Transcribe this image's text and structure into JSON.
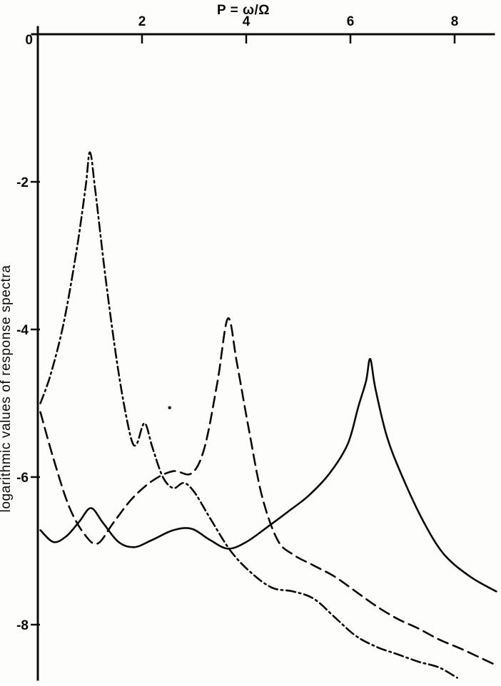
{
  "figure": {
    "title": "P = ω/Ω",
    "ylabel": "logarithmic values of response spectra"
  },
  "chart_data": {
    "type": "line",
    "title": "P = ω/Ω",
    "xlabel": "P = ω/Ω",
    "ylabel": "logarithmic values of response spectra",
    "x_axis": {
      "position": "top",
      "range": [
        0,
        8.8
      ],
      "ticks": [
        {
          "value": 2,
          "label": "2"
        },
        {
          "value": 4,
          "label": "4"
        },
        {
          "value": 6,
          "label": "6"
        },
        {
          "value": 8,
          "label": "8"
        }
      ]
    },
    "y_axis": {
      "position": "left",
      "range": [
        -8.8,
        0.1
      ],
      "ticks": [
        {
          "value": 0,
          "label": "0"
        },
        {
          "value": -2,
          "label": "-2"
        },
        {
          "value": -4,
          "label": "-4"
        },
        {
          "value": -6,
          "label": "-6"
        },
        {
          "value": -8,
          "label": "-8"
        }
      ]
    },
    "grid": false,
    "legend": "none",
    "series": [
      {
        "name": "dash-dot-curve",
        "style": "dash-dot",
        "peak": {
          "p": 1.0,
          "value": -1.6
        },
        "points": [
          [
            0.05,
            -5.0
          ],
          [
            0.25,
            -4.6
          ],
          [
            0.5,
            -3.9
          ],
          [
            0.75,
            -2.9
          ],
          [
            0.92,
            -2.05
          ],
          [
            1.0,
            -1.6
          ],
          [
            1.1,
            -2.1
          ],
          [
            1.3,
            -3.3
          ],
          [
            1.5,
            -4.35
          ],
          [
            1.65,
            -5.0
          ],
          [
            1.8,
            -5.5
          ],
          [
            1.9,
            -5.55
          ],
          [
            2.05,
            -5.27
          ],
          [
            2.2,
            -5.6
          ],
          [
            2.4,
            -6.0
          ],
          [
            2.6,
            -6.15
          ],
          [
            2.8,
            -6.08
          ],
          [
            3.0,
            -6.2
          ],
          [
            3.3,
            -6.55
          ],
          [
            3.7,
            -7.0
          ],
          [
            4.1,
            -7.3
          ],
          [
            4.5,
            -7.5
          ],
          [
            4.9,
            -7.55
          ],
          [
            5.3,
            -7.65
          ],
          [
            5.7,
            -7.9
          ],
          [
            6.1,
            -8.15
          ],
          [
            6.5,
            -8.3
          ],
          [
            6.9,
            -8.4
          ],
          [
            7.3,
            -8.5
          ],
          [
            7.7,
            -8.58
          ],
          [
            8.05,
            -8.72
          ]
        ]
      },
      {
        "name": "dashed-curve",
        "style": "dashed",
        "peak": {
          "p": 3.65,
          "value": -3.85
        },
        "points": [
          [
            0.05,
            -5.12
          ],
          [
            0.3,
            -5.75
          ],
          [
            0.6,
            -6.4
          ],
          [
            0.9,
            -6.78
          ],
          [
            1.15,
            -6.9
          ],
          [
            1.45,
            -6.62
          ],
          [
            1.8,
            -6.3
          ],
          [
            2.2,
            -6.05
          ],
          [
            2.6,
            -5.92
          ],
          [
            2.95,
            -5.95
          ],
          [
            3.2,
            -5.6
          ],
          [
            3.45,
            -4.7
          ],
          [
            3.65,
            -3.85
          ],
          [
            3.82,
            -4.45
          ],
          [
            4.05,
            -5.35
          ],
          [
            4.3,
            -6.25
          ],
          [
            4.6,
            -6.85
          ],
          [
            4.9,
            -7.05
          ],
          [
            5.3,
            -7.2
          ],
          [
            5.7,
            -7.35
          ],
          [
            6.1,
            -7.55
          ],
          [
            6.5,
            -7.75
          ],
          [
            6.9,
            -7.92
          ],
          [
            7.3,
            -8.05
          ],
          [
            7.7,
            -8.2
          ],
          [
            8.1,
            -8.32
          ],
          [
            8.5,
            -8.45
          ],
          [
            8.8,
            -8.55
          ]
        ]
      },
      {
        "name": "solid-curve",
        "style": "solid",
        "peak": {
          "p": 6.38,
          "value": -4.4
        },
        "points": [
          [
            0.05,
            -6.72
          ],
          [
            0.3,
            -6.88
          ],
          [
            0.55,
            -6.8
          ],
          [
            0.8,
            -6.6
          ],
          [
            1.02,
            -6.42
          ],
          [
            1.25,
            -6.62
          ],
          [
            1.55,
            -6.88
          ],
          [
            1.85,
            -6.95
          ],
          [
            2.2,
            -6.85
          ],
          [
            2.6,
            -6.72
          ],
          [
            2.95,
            -6.7
          ],
          [
            3.3,
            -6.85
          ],
          [
            3.65,
            -6.97
          ],
          [
            4.0,
            -6.88
          ],
          [
            4.4,
            -6.68
          ],
          [
            4.8,
            -6.47
          ],
          [
            5.2,
            -6.25
          ],
          [
            5.6,
            -5.95
          ],
          [
            5.95,
            -5.55
          ],
          [
            6.15,
            -5.05
          ],
          [
            6.3,
            -4.7
          ],
          [
            6.38,
            -4.4
          ],
          [
            6.48,
            -4.8
          ],
          [
            6.7,
            -5.45
          ],
          [
            7.0,
            -6.0
          ],
          [
            7.4,
            -6.6
          ],
          [
            7.8,
            -7.05
          ],
          [
            8.3,
            -7.35
          ],
          [
            8.8,
            -7.55
          ]
        ]
      }
    ],
    "stray_mark": {
      "p": 2.53,
      "value": -5.06
    },
    "line_color": "#0a0a0a",
    "background_color": "#fdfdfb"
  }
}
